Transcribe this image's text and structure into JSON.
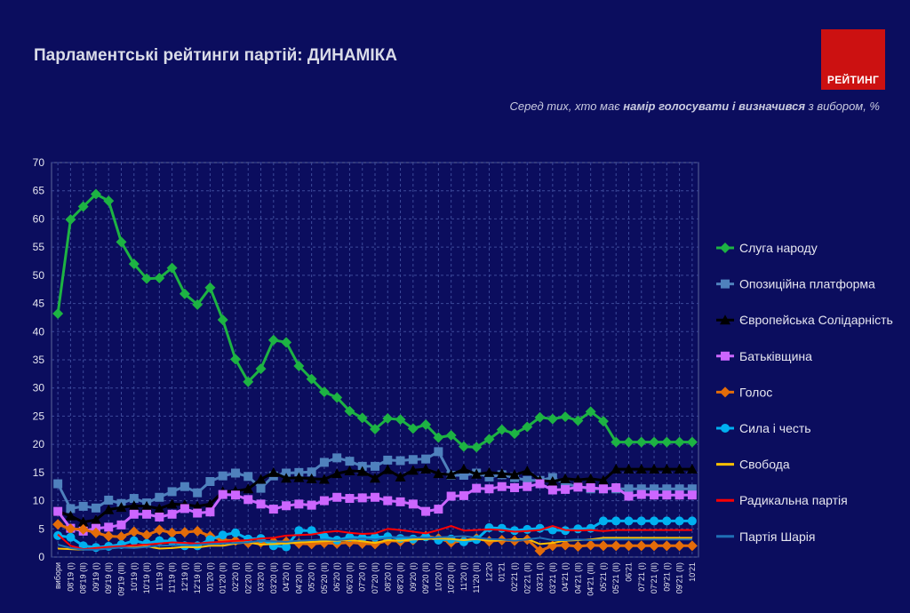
{
  "header": {
    "title": "Парламентські рейтинги партій: ДИНАМІКА",
    "logo_text": "РЕЙТИНГ",
    "subtitle_pre": "Серед тих, хто має ",
    "subtitle_bold": "намір голосувати і визначився",
    "subtitle_post": " з вибором, %"
  },
  "chart_data": {
    "type": "line",
    "x": [
      "вибори",
      "08'19 (I)",
      "08'19 (II)",
      "09'19 (I)",
      "09'19 (II)",
      "09'19 (III)",
      "10'19 (I)",
      "10'19 (II)",
      "11'19 (I)",
      "11'19 (II)",
      "12'19 (I)",
      "12'19 (II)",
      "01'20 (I)",
      "01'20 (II)",
      "02'20 (I)",
      "02'20 (II)",
      "03'20 (I)",
      "03'20 (II)",
      "04'20 (I)",
      "04'20 (II)",
      "05'20 (I)",
      "05'20 (II)",
      "06'20 (I)",
      "06'20 (II)",
      "07'20 (I)",
      "07'20 (II)",
      "08'20 (I)",
      "08'20 (II)",
      "09'20 (I)",
      "09'20 (II)",
      "10'20 (I)",
      "10'20 (II)",
      "11'20 (I)",
      "11'20 (II)",
      "12'20",
      "01'21",
      "02'21 (I)",
      "02'21 (II)",
      "03'21 (I)",
      "03'21 (II)",
      "04'21 (I)",
      "04'21 (II)",
      "04'21 (III)",
      "05'21 (I)",
      "05'21 (II)",
      "06'21",
      "07'21 (I)",
      "07'21 (II)",
      "09'21 (I)",
      "09'21 (II)",
      "10'21"
    ],
    "ylim": [
      0,
      70
    ],
    "yticks": [
      0,
      5,
      10,
      15,
      20,
      25,
      30,
      35,
      40,
      45,
      50,
      55,
      60,
      65,
      70
    ],
    "grid": true,
    "legend_position": "right",
    "series": [
      {
        "name": "Слуга народу",
        "color": "#1db343",
        "marker": "diamond",
        "values": [
          43.2,
          59.9,
          62.2,
          64.4,
          63.2,
          55.9,
          52.0,
          49.4,
          49.5,
          51.3,
          46.7,
          44.8,
          47.8,
          42.1,
          35.1,
          31.1,
          33.4,
          38.5,
          38.1,
          33.9,
          31.6,
          29.3,
          28.3,
          25.9,
          24.7,
          22.7,
          24.6,
          24.4,
          22.8,
          23.5,
          21.2,
          21.6,
          19.6,
          19.5,
          20.9,
          22.6,
          21.9,
          23.1,
          24.8,
          24.5,
          24.9,
          24.2,
          25.8,
          24.1,
          20.4,
          20.4,
          20.4,
          20.4,
          20.4,
          20.4,
          20.4
        ]
      },
      {
        "name": "Опозиційна платформа",
        "color": "#4f81bd",
        "marker": "square",
        "values": [
          13.0,
          8.6,
          9.0,
          8.7,
          10.1,
          9.5,
          10.4,
          9.6,
          10.6,
          11.6,
          12.5,
          11.4,
          13.4,
          14.4,
          14.9,
          14.3,
          12.2,
          14.4,
          14.9,
          15.0,
          15.1,
          16.8,
          17.6,
          17.0,
          16.1,
          16.1,
          17.2,
          17.1,
          17.3,
          17.4,
          18.7,
          14.5,
          14.5,
          14.9,
          14.2,
          14.6,
          14.1,
          13.6,
          13.6,
          14.1,
          13.0,
          12.5,
          12.1,
          12.1,
          12.1,
          12.1,
          12.1,
          12.1,
          12.1,
          12.1,
          12.1
        ]
      },
      {
        "name": "Європейська Солідарність",
        "color": "#000000",
        "marker": "triangle",
        "values": [
          8.1,
          7.3,
          6.2,
          6.6,
          8.4,
          8.8,
          9.1,
          9.0,
          8.6,
          9.4,
          9.3,
          9.0,
          9.4,
          11.6,
          11.7,
          12.1,
          13.8,
          15.0,
          14.0,
          14.1,
          13.9,
          13.8,
          14.8,
          15.3,
          15.2,
          14.0,
          15.5,
          14.2,
          15.4,
          15.6,
          14.8,
          14.6,
          15.6,
          14.7,
          15.0,
          14.8,
          14.6,
          15.3,
          13.6,
          13.4,
          13.9,
          13.7,
          13.9,
          13.6,
          15.6,
          15.6,
          15.6,
          15.6,
          15.6,
          15.6,
          15.6
        ]
      },
      {
        "name": "Батьківщина",
        "color": "#cc66ff",
        "marker": "square",
        "values": [
          8.1,
          5.1,
          4.6,
          5.1,
          5.3,
          5.7,
          7.6,
          7.6,
          7.1,
          7.6,
          8.6,
          7.8,
          8.0,
          11.1,
          11.0,
          10.2,
          9.4,
          8.5,
          9.1,
          9.4,
          9.2,
          10.0,
          10.6,
          10.4,
          10.5,
          10.6,
          10.0,
          9.8,
          9.4,
          8.1,
          8.5,
          10.8,
          10.9,
          12.2,
          12.1,
          12.5,
          12.3,
          12.5,
          13.0,
          11.9,
          12.0,
          12.4,
          12.3,
          12.1,
          12.3,
          10.8,
          11.1,
          11.0,
          11.0,
          11.0,
          11.0
        ]
      },
      {
        "name": "Голос",
        "color": "#e36c09",
        "marker": "diamond",
        "values": [
          5.8,
          5.0,
          4.9,
          4.3,
          3.7,
          3.6,
          4.5,
          3.9,
          4.8,
          4.3,
          4.4,
          4.6,
          3.7,
          3.0,
          2.9,
          2.5,
          2.6,
          2.7,
          2.7,
          2.4,
          2.3,
          2.5,
          2.4,
          2.6,
          2.4,
          2.3,
          2.9,
          2.8,
          3.0,
          3.7,
          3.3,
          2.6,
          2.9,
          3.3,
          2.8,
          3.0,
          2.9,
          3.1,
          1.1,
          2.0,
          2.1,
          1.9,
          2.1,
          2.0,
          2.0,
          2.0,
          2.0,
          2.0,
          2.0,
          2.0,
          2.0
        ]
      },
      {
        "name": "Сила і честь",
        "color": "#00b0f0",
        "marker": "circle",
        "values": [
          3.8,
          3.5,
          2.0,
          1.7,
          1.9,
          2.2,
          2.9,
          2.4,
          2.9,
          2.8,
          2.0,
          2.0,
          3.1,
          3.9,
          4.3,
          3.2,
          3.3,
          2.0,
          1.8,
          4.7,
          4.7,
          3.6,
          3.0,
          3.5,
          3.4,
          3.5,
          3.6,
          3.3,
          3.2,
          3.6,
          3.0,
          3.2,
          2.7,
          3.1,
          5.2,
          5.1,
          4.7,
          4.9,
          5.1,
          4.8,
          4.7,
          5.0,
          5.1,
          6.4,
          6.4,
          6.4,
          6.4,
          6.4,
          6.4,
          6.4,
          6.4
        ]
      },
      {
        "name": "Свобода",
        "color": "#ffc000",
        "marker": "none",
        "values": [
          1.5,
          1.4,
          1.3,
          1.6,
          1.7,
          1.8,
          1.7,
          1.9,
          1.5,
          1.6,
          1.8,
          1.7,
          2.0,
          2.0,
          2.4,
          2.6,
          2.2,
          2.3,
          2.4,
          2.6,
          2.7,
          2.8,
          2.9,
          3.0,
          2.8,
          2.5,
          3.0,
          2.9,
          3.1,
          3.2,
          3.3,
          3.2,
          3.0,
          3.2,
          2.9,
          3.0,
          3.1,
          3.2,
          2.3,
          2.5,
          2.9,
          3.0,
          3.1,
          3.4,
          3.4,
          3.4,
          3.4,
          3.4,
          3.4,
          3.4,
          3.4
        ]
      },
      {
        "name": "Радикальна партія",
        "color": "#ff0000",
        "marker": "none",
        "values": [
          4.0,
          2.0,
          1.4,
          1.6,
          1.8,
          1.9,
          2.1,
          2.2,
          2.4,
          2.6,
          2.5,
          2.4,
          2.6,
          2.7,
          2.9,
          3.0,
          3.3,
          3.4,
          3.8,
          3.9,
          4.0,
          4.4,
          4.6,
          4.3,
          4.1,
          4.2,
          5.0,
          4.8,
          4.5,
          4.2,
          4.8,
          5.5,
          4.7,
          4.8,
          4.9,
          4.8,
          4.5,
          4.6,
          4.8,
          5.5,
          4.8,
          4.7,
          4.8,
          4.6,
          4.8,
          4.8,
          4.8,
          4.8,
          4.8,
          4.8,
          4.8
        ]
      },
      {
        "name": "Партія Шарія",
        "color": "#1f6fb5",
        "marker": "none",
        "values": [
          2.2,
          1.6,
          1.3,
          1.3,
          1.5,
          1.7,
          1.6,
          1.8,
          2.0,
          2.1,
          2.1,
          2.2,
          2.3,
          2.4,
          2.5,
          2.6,
          2.9,
          2.8,
          2.7,
          2.9,
          3.0,
          3.1,
          3.0,
          3.2,
          3.3,
          3.1,
          3.4,
          3.6,
          3.5,
          3.4,
          3.5,
          3.6,
          3.7,
          3.4,
          3.2,
          3.1,
          2.9,
          3.1,
          3.4,
          3.0,
          3.0,
          3.1,
          3.0,
          3.1,
          3.1,
          3.1,
          3.1,
          3.1,
          3.1,
          3.1,
          3.1
        ]
      }
    ]
  }
}
